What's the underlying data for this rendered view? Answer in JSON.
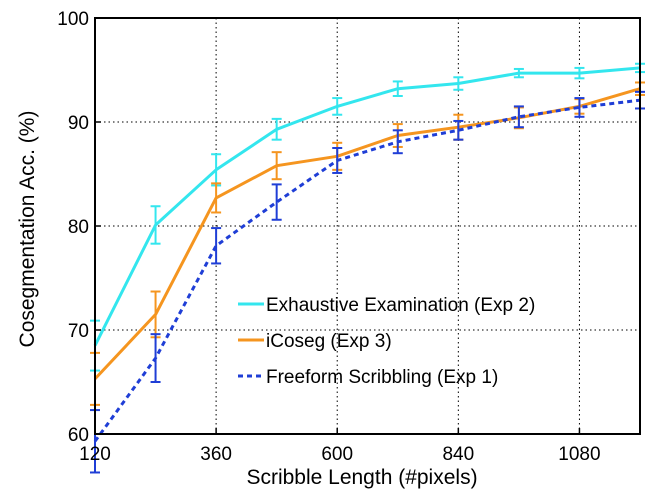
{
  "chart_data": {
    "type": "line",
    "title": "",
    "xlabel": "Scribble Length (#pixels)",
    "ylabel": "Cosegmentation Acc. (%)",
    "xlim": [
      120,
      1200
    ],
    "ylim": [
      60,
      100
    ],
    "xticks": [
      120,
      360,
      600,
      840,
      1080
    ],
    "yticks": [
      60,
      70,
      80,
      90,
      100
    ],
    "grid": true,
    "legend_position": "lower-right",
    "x": [
      120,
      240,
      360,
      480,
      600,
      720,
      840,
      960,
      1080,
      1200
    ],
    "series": [
      {
        "name": "Exhaustive Examination (Exp 2)",
        "color": "#33e6ee",
        "dash": "solid",
        "values": [
          68.5,
          80.1,
          85.4,
          89.3,
          91.5,
          93.2,
          93.7,
          94.7,
          94.7,
          95.2
        ],
        "errors": [
          2.4,
          1.8,
          1.5,
          1.0,
          0.8,
          0.7,
          0.6,
          0.4,
          0.5,
          0.4
        ]
      },
      {
        "name": "iCoseg (Exp 3)",
        "color": "#f5951f",
        "dash": "solid",
        "values": [
          65.3,
          71.5,
          82.7,
          85.8,
          86.7,
          88.7,
          89.5,
          90.4,
          91.5,
          93.2
        ],
        "errors": [
          2.5,
          2.2,
          1.4,
          1.3,
          1.3,
          1.1,
          1.2,
          1.0,
          0.7,
          0.6
        ]
      },
      {
        "name": "Freeform Scribbling (Exp 1)",
        "color": "#1f3ed6",
        "dash": "dashed",
        "values": [
          59.3,
          67.3,
          78.1,
          82.3,
          86.3,
          88.1,
          89.2,
          90.5,
          91.4,
          92.1
        ],
        "errors": [
          3.0,
          2.3,
          1.7,
          1.7,
          1.2,
          1.1,
          0.9,
          1.0,
          0.9,
          0.8
        ]
      }
    ]
  }
}
